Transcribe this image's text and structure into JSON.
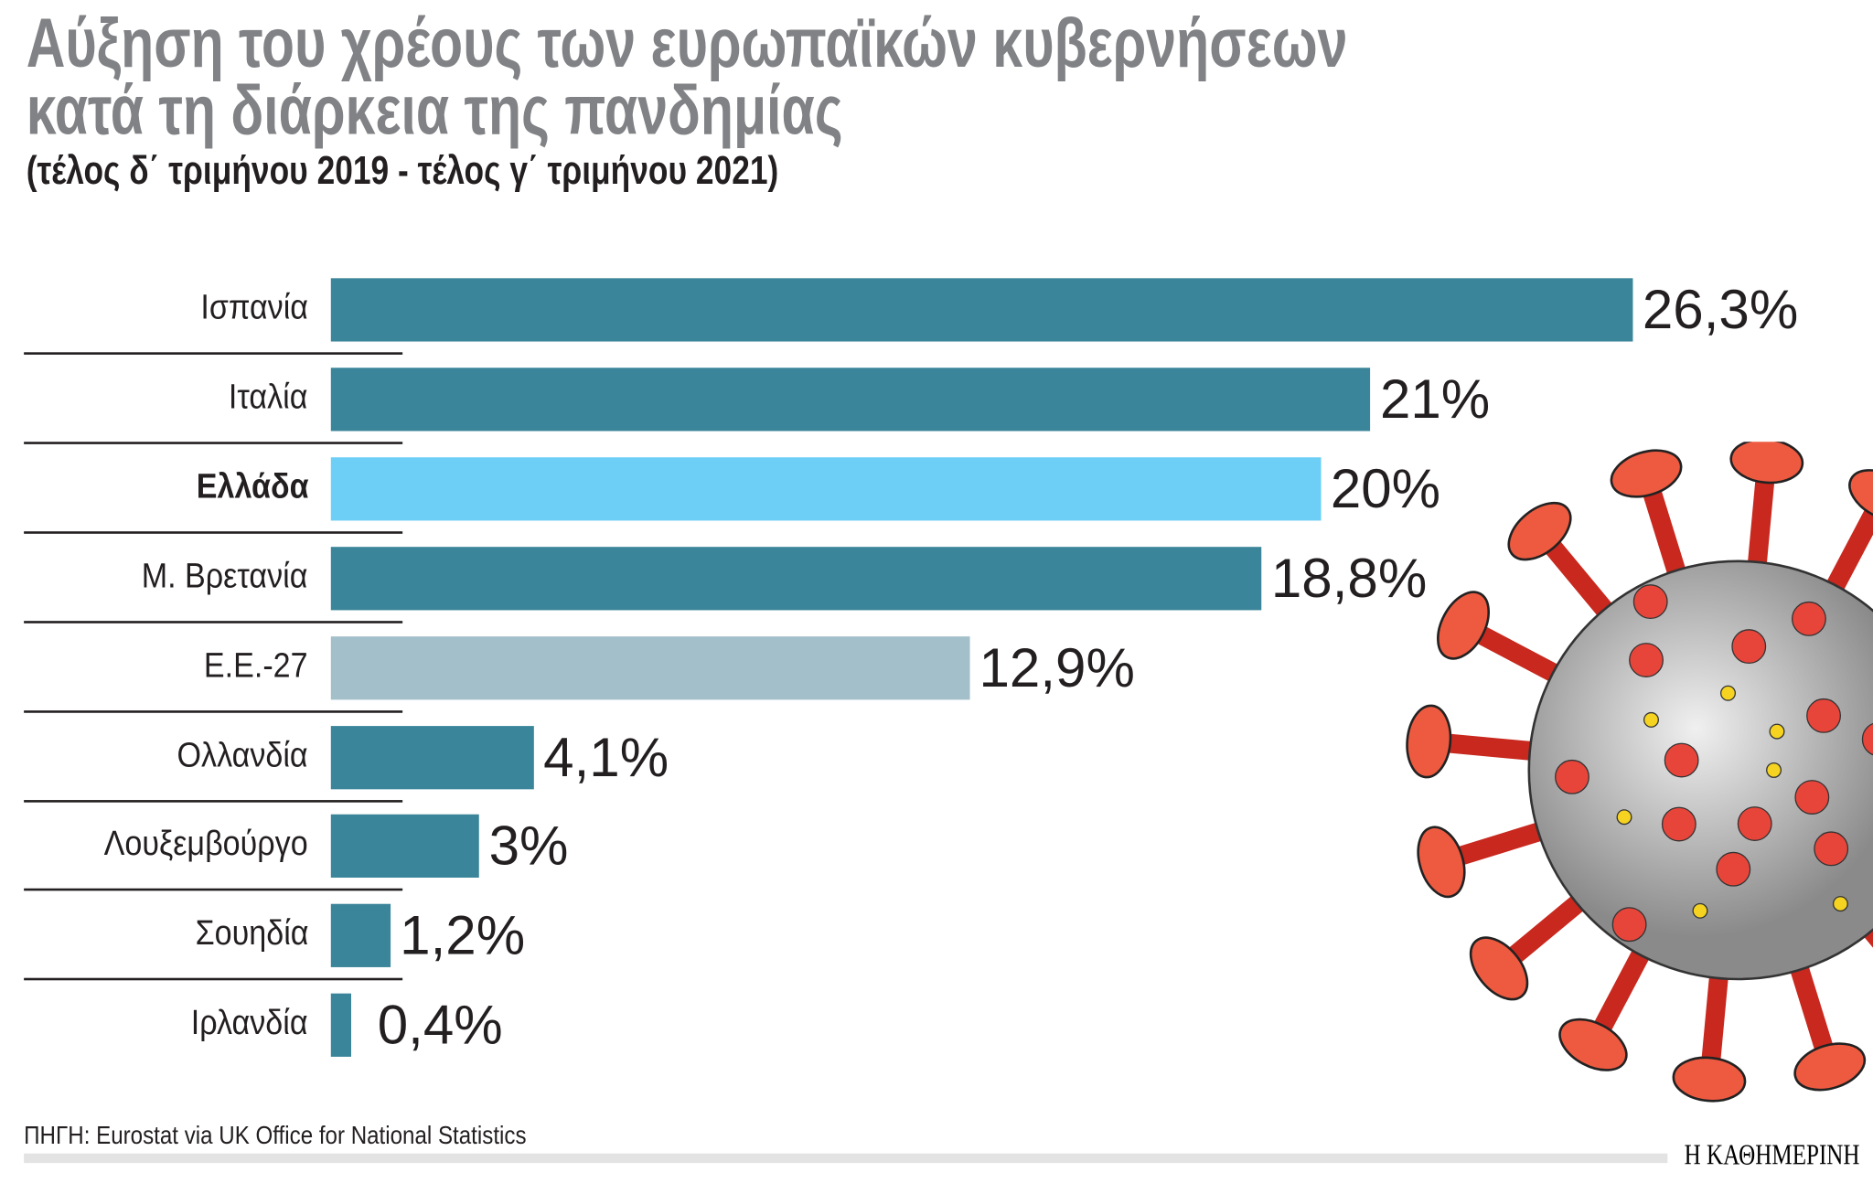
{
  "chart_data": {
    "type": "bar",
    "orientation": "horizontal",
    "title": "Αύξηση του χρέους των ευρωπαϊκών κυβερνήσεων κατά τη διάρκεια της πανδημίας",
    "title_lines": [
      "Αύξηση του χρέους των ευρωπαϊκών κυβερνήσεων",
      "κατά τη διάρκεια της πανδημίας"
    ],
    "subtitle": "(τέλος δ΄ τριμήνου 2019 - τέλος γ΄ τριμήνου 2021)",
    "categories": [
      "Ισπανία",
      "Ιταλία",
      "Ελλάδα",
      "Μ. Βρετανία",
      "Ε.Ε.-27",
      "Ολλανδία",
      "Λουξεμβούργο",
      "Σουηδία",
      "Ιρλανδία"
    ],
    "values": [
      26.3,
      21,
      20,
      18.8,
      12.9,
      4.1,
      3,
      1.2,
      0.4
    ],
    "value_labels": [
      "26,3%",
      "21%",
      "20%",
      "18,8%",
      "12,9%",
      "4,1%",
      "3%",
      "1,2%",
      "0,4%"
    ],
    "highlight": "Ελλάδα",
    "colors": {
      "default": "#3a8599",
      "highlight": "#6dcff6",
      "eu": "#a3bfca"
    },
    "unit": "%",
    "xlim": [
      0,
      26.3
    ],
    "grid": false
  },
  "source": "ΠΗΓΗ: Eurostat via UK Office for National Statistics",
  "logo": "Η ΚΑΘΗΜΕΡΙΝΗ"
}
